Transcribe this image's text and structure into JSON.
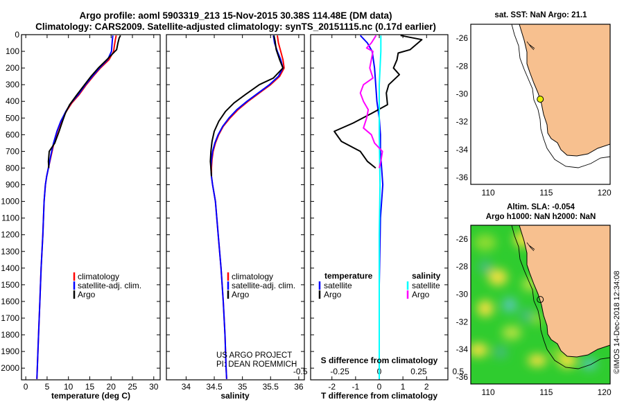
{
  "header": {
    "line1": "Argo profile: aoml 5903319_213 15-Nov-2015 30.38S 114.48E (DM data)",
    "line2": "Climatology: CARS2009. Satellite-adjusted climatology: synTS_20151115.nc (0.17d earlier)"
  },
  "colors": {
    "climatology": "#ff0000",
    "satellite": "#0000ff",
    "argo": "#000000",
    "sat_salinity": "#00ffff",
    "argo_salinity": "#ff00ff",
    "land": "#f7c08f",
    "ocean_green": "#2fcc2f"
  },
  "chart_data": [
    {
      "id": "temperature",
      "type": "line",
      "xlabel": "temperature (deg C)",
      "ylabel": "",
      "xlim": [
        -1,
        31.5
      ],
      "ylim": [
        2070,
        0
      ],
      "xticks": [
        0,
        5,
        10,
        15,
        20,
        25,
        30
      ],
      "yticks": [
        0,
        100,
        200,
        300,
        400,
        500,
        600,
        700,
        800,
        900,
        1000,
        1100,
        1200,
        1300,
        1400,
        1500,
        1600,
        1700,
        1800,
        1900,
        2000
      ],
      "legend": [
        "climatology",
        "satellite-adj. clim.",
        "Argo"
      ],
      "series": [
        {
          "name": "climatology",
          "color": "#ff0000",
          "points": [
            [
              21.2,
              5
            ],
            [
              21.0,
              30
            ],
            [
              20.8,
              60
            ],
            [
              20.6,
              100
            ],
            [
              19.5,
              150
            ],
            [
              17.5,
              200
            ],
            [
              15.8,
              250
            ],
            [
              14.2,
              300
            ],
            [
              12.5,
              360
            ],
            [
              10.8,
              410
            ],
            [
              9.5,
              460
            ],
            [
              8.3,
              520
            ],
            [
              7.4,
              580
            ],
            [
              6.6,
              650
            ],
            [
              6.0,
              720
            ],
            [
              5.3,
              800
            ],
            [
              4.9,
              850
            ],
            [
              4.6,
              900
            ],
            [
              4.3,
              1000
            ],
            [
              4.0,
              1200
            ],
            [
              3.6,
              1400
            ],
            [
              3.3,
              1600
            ],
            [
              3.0,
              1800
            ],
            [
              2.7,
              2000
            ],
            [
              2.6,
              2065
            ]
          ]
        },
        {
          "name": "satellite-adj. clim.",
          "color": "#0000ff",
          "points": [
            [
              20.4,
              5
            ],
            [
              20.3,
              30
            ],
            [
              20.2,
              60
            ],
            [
              20.1,
              100
            ],
            [
              19.2,
              150
            ],
            [
              17.3,
              200
            ],
            [
              15.6,
              250
            ],
            [
              14.0,
              300
            ],
            [
              12.3,
              360
            ],
            [
              10.6,
              410
            ],
            [
              9.4,
              460
            ],
            [
              8.2,
              520
            ],
            [
              7.3,
              580
            ],
            [
              6.5,
              650
            ],
            [
              5.9,
              720
            ],
            [
              5.3,
              800
            ],
            [
              4.9,
              850
            ],
            [
              4.6,
              900
            ],
            [
              4.3,
              1000
            ],
            [
              4.0,
              1200
            ],
            [
              3.6,
              1400
            ],
            [
              3.3,
              1600
            ],
            [
              3.0,
              1800
            ],
            [
              2.7,
              2000
            ],
            [
              2.6,
              2065
            ]
          ]
        },
        {
          "name": "Argo",
          "color": "#000000",
          "points": [
            [
              22.2,
              5
            ],
            [
              21.9,
              20
            ],
            [
              21.6,
              50
            ],
            [
              21.3,
              90
            ],
            [
              19.0,
              150
            ],
            [
              17.0,
              200
            ],
            [
              15.3,
              250
            ],
            [
              13.5,
              310
            ],
            [
              12.0,
              360
            ],
            [
              10.3,
              420
            ],
            [
              9.3,
              470
            ],
            [
              8.6,
              520
            ],
            [
              7.8,
              580
            ],
            [
              6.8,
              650
            ],
            [
              5.5,
              700
            ],
            [
              5.3,
              760
            ],
            [
              5.4,
              800
            ]
          ]
        }
      ]
    },
    {
      "id": "salinity",
      "type": "line",
      "xlabel": "salinity",
      "ylabel": "",
      "xlim": [
        33.65,
        36.1
      ],
      "ylim": [
        2070,
        0
      ],
      "xticks": [
        34,
        34.5,
        35,
        35.5,
        36
      ],
      "legend": [
        "climatology",
        "satellite-adj. clim.",
        "Argo"
      ],
      "series": [
        {
          "name": "climatology",
          "color": "#ff0000",
          "points": [
            [
              35.62,
              5
            ],
            [
              35.64,
              50
            ],
            [
              35.68,
              100
            ],
            [
              35.72,
              150
            ],
            [
              35.74,
              200
            ],
            [
              35.66,
              250
            ],
            [
              35.5,
              300
            ],
            [
              35.3,
              350
            ],
            [
              35.1,
              400
            ],
            [
              34.92,
              450
            ],
            [
              34.78,
              500
            ],
            [
              34.66,
              550
            ],
            [
              34.58,
              600
            ],
            [
              34.52,
              650
            ],
            [
              34.48,
              700
            ],
            [
              34.46,
              750
            ],
            [
              34.45,
              800
            ],
            [
              34.45,
              850
            ],
            [
              34.47,
              900
            ],
            [
              34.52,
              1000
            ],
            [
              34.57,
              1200
            ],
            [
              34.62,
              1400
            ],
            [
              34.66,
              1600
            ],
            [
              34.69,
              1800
            ],
            [
              34.71,
              2000
            ],
            [
              34.72,
              2065
            ]
          ]
        },
        {
          "name": "satellite-adj. clim.",
          "color": "#0000ff",
          "points": [
            [
              35.55,
              5
            ],
            [
              35.57,
              50
            ],
            [
              35.62,
              100
            ],
            [
              35.68,
              150
            ],
            [
              35.72,
              200
            ],
            [
              35.64,
              250
            ],
            [
              35.48,
              300
            ],
            [
              35.28,
              350
            ],
            [
              35.08,
              400
            ],
            [
              34.9,
              450
            ],
            [
              34.76,
              500
            ],
            [
              34.65,
              550
            ],
            [
              34.57,
              600
            ],
            [
              34.51,
              650
            ],
            [
              34.47,
              700
            ],
            [
              34.45,
              750
            ],
            [
              34.44,
              800
            ],
            [
              34.45,
              850
            ],
            [
              34.47,
              900
            ],
            [
              34.52,
              1000
            ],
            [
              34.57,
              1200
            ],
            [
              34.62,
              1400
            ],
            [
              34.66,
              1600
            ],
            [
              34.69,
              1800
            ],
            [
              34.71,
              2000
            ],
            [
              34.72,
              2065
            ]
          ]
        },
        {
          "name": "Argo",
          "color": "#000000",
          "points": [
            [
              35.56,
              5
            ],
            [
              35.58,
              40
            ],
            [
              35.6,
              90
            ],
            [
              35.66,
              150
            ],
            [
              35.72,
              200
            ],
            [
              35.55,
              260
            ],
            [
              35.3,
              300
            ],
            [
              35.05,
              360
            ],
            [
              34.85,
              410
            ],
            [
              34.7,
              460
            ],
            [
              34.58,
              520
            ],
            [
              34.5,
              580
            ],
            [
              34.46,
              640
            ],
            [
              34.44,
              700
            ],
            [
              34.43,
              760
            ],
            [
              34.44,
              800
            ],
            [
              34.45,
              850
            ]
          ]
        }
      ]
    },
    {
      "id": "difference",
      "type": "line",
      "xlabel": "T difference from climatology",
      "xlabel_top": "S difference from climatology",
      "xlim": [
        -2.9,
        2.9
      ],
      "ylim": [
        2070,
        0
      ],
      "xticks": [
        -2,
        -1,
        0,
        1,
        2
      ],
      "xticks_salinity": [
        -0.5,
        -0.25,
        0,
        0.25,
        0.5
      ],
      "xticks_salinity_labels": [
        "-0.5",
        "-0.25",
        "0",
        "0.25",
        "0.5"
      ],
      "legend_temperature_title": "temperature",
      "legend_salinity_title": "salinity",
      "legend_temperature": [
        "satellite",
        "Argo"
      ],
      "legend_salinity": [
        "satellite",
        "Argo"
      ],
      "series": [
        {
          "name": "T satellite",
          "color": "#0000ff",
          "points": [
            [
              -0.8,
              5
            ],
            [
              -0.5,
              50
            ],
            [
              -0.3,
              100
            ],
            [
              -0.2,
              200
            ],
            [
              -0.15,
              300
            ],
            [
              -0.1,
              400
            ],
            [
              0,
              500
            ],
            [
              0.05,
              600
            ],
            [
              0.05,
              700
            ],
            [
              0.1,
              800
            ],
            [
              0.15,
              900
            ],
            [
              0.1,
              1000
            ],
            [
              0.05,
              1100
            ],
            [
              0,
              1500
            ],
            [
              0,
              2065
            ]
          ]
        },
        {
          "name": "T Argo",
          "color": "#000000",
          "points": [
            [
              0.9,
              5
            ],
            [
              1.8,
              30
            ],
            [
              1.3,
              90
            ],
            [
              0.8,
              110
            ],
            [
              0.75,
              150
            ],
            [
              0.6,
              200
            ],
            [
              0.85,
              240
            ],
            [
              0.4,
              300
            ],
            [
              0.3,
              350
            ],
            [
              0.35,
              420
            ],
            [
              -0.3,
              470
            ],
            [
              -1.1,
              530
            ],
            [
              -1.9,
              580
            ],
            [
              -1.6,
              640
            ],
            [
              -0.8,
              700
            ],
            [
              -0.5,
              760
            ],
            [
              -0.15,
              800
            ]
          ]
        },
        {
          "name": "S satellite",
          "color": "#00ffff",
          "points": [
            [
              0.01,
              5
            ],
            [
              0.01,
              100
            ],
            [
              0.0,
              300
            ],
            [
              0.0,
              600
            ],
            [
              0.005,
              900
            ],
            [
              0.0,
              1200
            ],
            [
              0.0,
              2065
            ]
          ]
        },
        {
          "name": "S Argo",
          "color": "#ff00ff",
          "points": [
            [
              -0.02,
              5
            ],
            [
              -0.05,
              50
            ],
            [
              -0.08,
              80
            ],
            [
              -0.04,
              100
            ],
            [
              -0.05,
              150
            ],
            [
              -0.06,
              200
            ],
            [
              -0.04,
              260
            ],
            [
              -0.1,
              300
            ],
            [
              -0.12,
              350
            ],
            [
              -0.1,
              400
            ],
            [
              -0.07,
              450
            ],
            [
              -0.08,
              500
            ],
            [
              -0.1,
              560
            ],
            [
              -0.05,
              600
            ],
            [
              -0.03,
              650
            ],
            [
              0.02,
              700
            ],
            [
              0.01,
              760
            ],
            [
              0.0,
              800
            ]
          ]
        }
      ]
    },
    {
      "id": "map_sst",
      "type": "map",
      "title": "sat. SST: NaN Argo: 21.1",
      "xlim": [
        108.5,
        120.5
      ],
      "ylim": [
        -36.5,
        -25
      ],
      "xticks": [
        110,
        115,
        120
      ],
      "yticks": [
        -26,
        -28,
        -30,
        -32,
        -34,
        -36
      ],
      "float_position": [
        114.48,
        -30.38
      ]
    },
    {
      "id": "map_sla",
      "type": "map",
      "title_line1": "Altim. SLA: -0.054",
      "title_line2": "Argo h1000: NaN h2000: NaN",
      "xlim": [
        108.5,
        120.5
      ],
      "ylim": [
        -36.5,
        -25
      ],
      "xticks": [
        110,
        115,
        120
      ],
      "yticks": [
        -26,
        -28,
        -30,
        -32,
        -34,
        -36
      ],
      "float_position": [
        114.48,
        -30.38
      ]
    }
  ],
  "legend_labels": {
    "climatology": "climatology",
    "satellite_adj": "satellite-adj. clim.",
    "argo": "Argo"
  },
  "credits": {
    "project": "US ARGO PROJECT",
    "pi": "PI: DEAN ROEMMICH"
  },
  "watermark": "©IMOS 14-Dec-2018 12:34:08"
}
